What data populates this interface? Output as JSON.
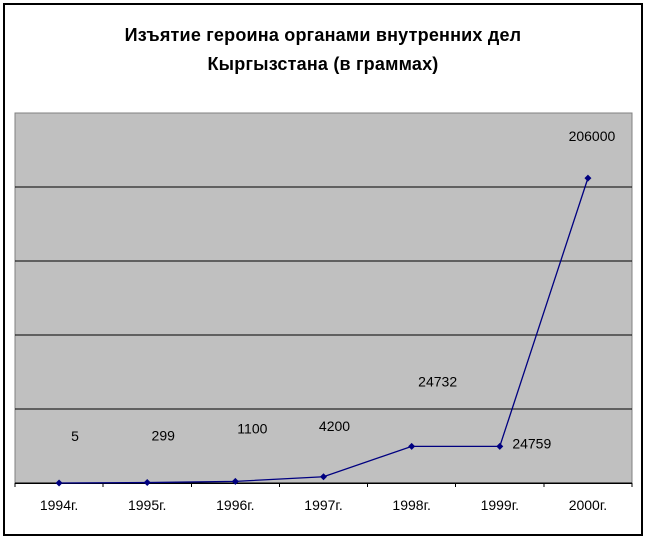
{
  "title": {
    "line1": "Изъятие героина органами внутренних дел",
    "line2": "Кыргызстана (в граммах)"
  },
  "chart_data": {
    "type": "line",
    "title": "Изъятие героина органами внутренних дел Кыргызстана (в граммах)",
    "categories": [
      "1994г.",
      "1995г.",
      "1996г.",
      "1997г.",
      "1998г.",
      "1999г.",
      "2000г."
    ],
    "values": [
      5,
      299,
      1100,
      4200,
      24732,
      24759,
      206000
    ],
    "data_labels": [
      "5",
      "299",
      "1100",
      "4200",
      "24732",
      "24759",
      "206000"
    ],
    "xlabel": "",
    "ylabel": "",
    "ylim": [
      0,
      250000
    ],
    "y_gridline_step": 50000,
    "y_axis_tick_labels_visible": false,
    "grid": "horizontal",
    "legend": "none",
    "marker": "diamond",
    "colors": {
      "line": "#000080",
      "marker": "#000080",
      "plot_background": "#C0C0C0",
      "plot_border": "#808080",
      "gridline": "#000000",
      "axis": "#000000",
      "text": "#000000",
      "chart_background": "#FFFFFF",
      "chart_border": "#000000"
    }
  }
}
